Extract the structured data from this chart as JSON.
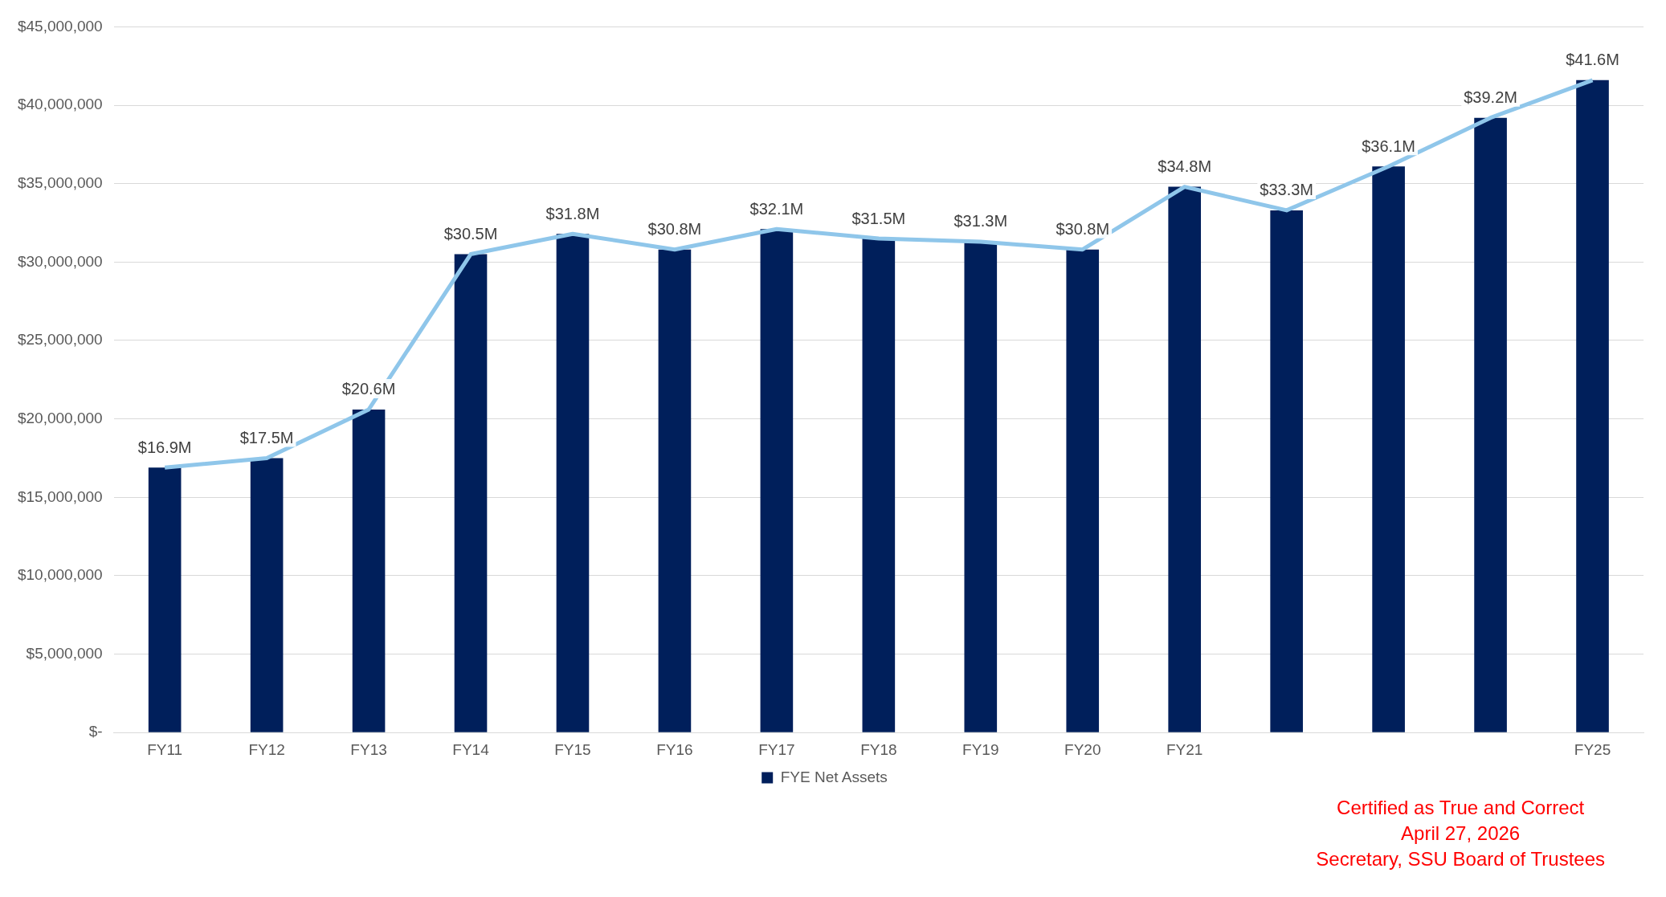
{
  "chart_data": {
    "type": "bar",
    "categories": [
      "FY11",
      "FY12",
      "FY13",
      "FY14",
      "FY15",
      "FY16",
      "FY17",
      "FY18",
      "FY19",
      "FY20",
      "FY21",
      null,
      null,
      null,
      "FY25"
    ],
    "series": [
      {
        "name": "FYE Net Assets",
        "color": "#001f5b",
        "values": [
          16900000,
          17500000,
          20600000,
          30500000,
          31800000,
          30800000,
          32100000,
          31500000,
          31300000,
          30800000,
          34800000,
          33300000,
          36100000,
          39200000,
          41600000
        ],
        "value_labels": [
          "$16.9M",
          "$17.5M",
          "$20.6M",
          "$30.5M",
          "$31.8M",
          "$30.8M",
          "$32.1M",
          "$31.5M",
          "$31.3M",
          "$30.8M",
          "$34.8M",
          "$33.3M",
          "$36.1M",
          "$39.2M",
          "$41.6M"
        ]
      },
      {
        "type": "line",
        "color": "#8fc6ea",
        "marker": "none",
        "line_style": "solid",
        "values": [
          16900000,
          17500000,
          20600000,
          30500000,
          31800000,
          30800000,
          32100000,
          31500000,
          31300000,
          30800000,
          34800000,
          33300000,
          36100000,
          39200000,
          41600000
        ]
      }
    ],
    "ylim": [
      0,
      45000000
    ],
    "yticks": [
      {
        "value": 0,
        "label": "$-"
      },
      {
        "value": 5000000,
        "label": "$5,000,000"
      },
      {
        "value": 10000000,
        "label": "$10,000,000"
      },
      {
        "value": 15000000,
        "label": "$15,000,000"
      },
      {
        "value": 20000000,
        "label": "$20,000,000"
      },
      {
        "value": 25000000,
        "label": "$25,000,000"
      },
      {
        "value": 30000000,
        "label": "$30,000,000"
      },
      {
        "value": 35000000,
        "label": "$35,000,000"
      },
      {
        "value": 40000000,
        "label": "$40,000,000"
      },
      {
        "value": 45000000,
        "label": "$45,000,000"
      }
    ],
    "grid": "y",
    "legend": "bottom",
    "annotations": [
      "Certified as True and Correct",
      "April 27, 2026",
      "Secretary, SSU Board of Trustees"
    ]
  }
}
